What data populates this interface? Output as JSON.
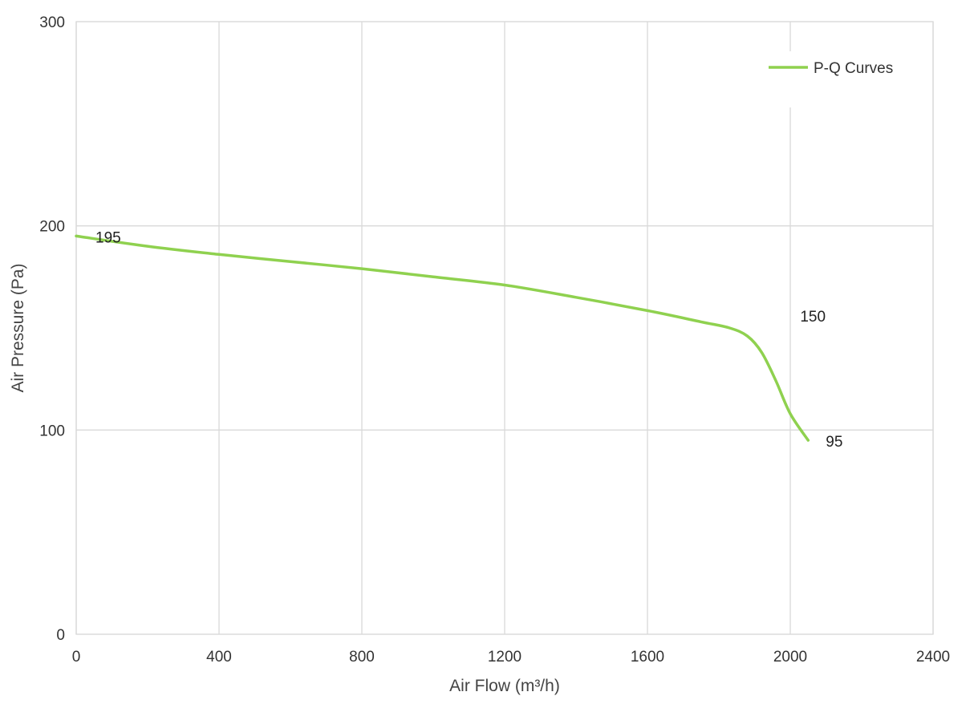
{
  "chart_data": {
    "type": "line",
    "xlabel": "Air Flow  (m³/h)",
    "ylabel": "Air Pressure  (Pa)",
    "xlim": [
      0,
      2400
    ],
    "ylim": [
      0,
      300
    ],
    "x_ticks": [
      0,
      400,
      800,
      1200,
      1600,
      2000,
      2400
    ],
    "y_ticks": [
      0,
      100,
      200,
      300
    ],
    "grid": true,
    "legend_position": "top-right",
    "series": [
      {
        "name": "P-Q Curves",
        "color": "#8fd14f",
        "points": [
          [
            0,
            195
          ],
          [
            200,
            190
          ],
          [
            400,
            186
          ],
          [
            600,
            182.5
          ],
          [
            800,
            179
          ],
          [
            1000,
            175
          ],
          [
            1200,
            171
          ],
          [
            1400,
            165
          ],
          [
            1600,
            158.5
          ],
          [
            1750,
            153
          ],
          [
            1830,
            150
          ],
          [
            1880,
            146
          ],
          [
            1920,
            138
          ],
          [
            1960,
            124
          ],
          [
            2000,
            108
          ],
          [
            2050,
            95
          ]
        ]
      }
    ],
    "data_labels": [
      {
        "x": 0,
        "y": 195,
        "text": "195"
      },
      {
        "x": 1830,
        "y": 150,
        "text": "150"
      },
      {
        "x": 2050,
        "y": 95,
        "text": "95"
      }
    ]
  }
}
